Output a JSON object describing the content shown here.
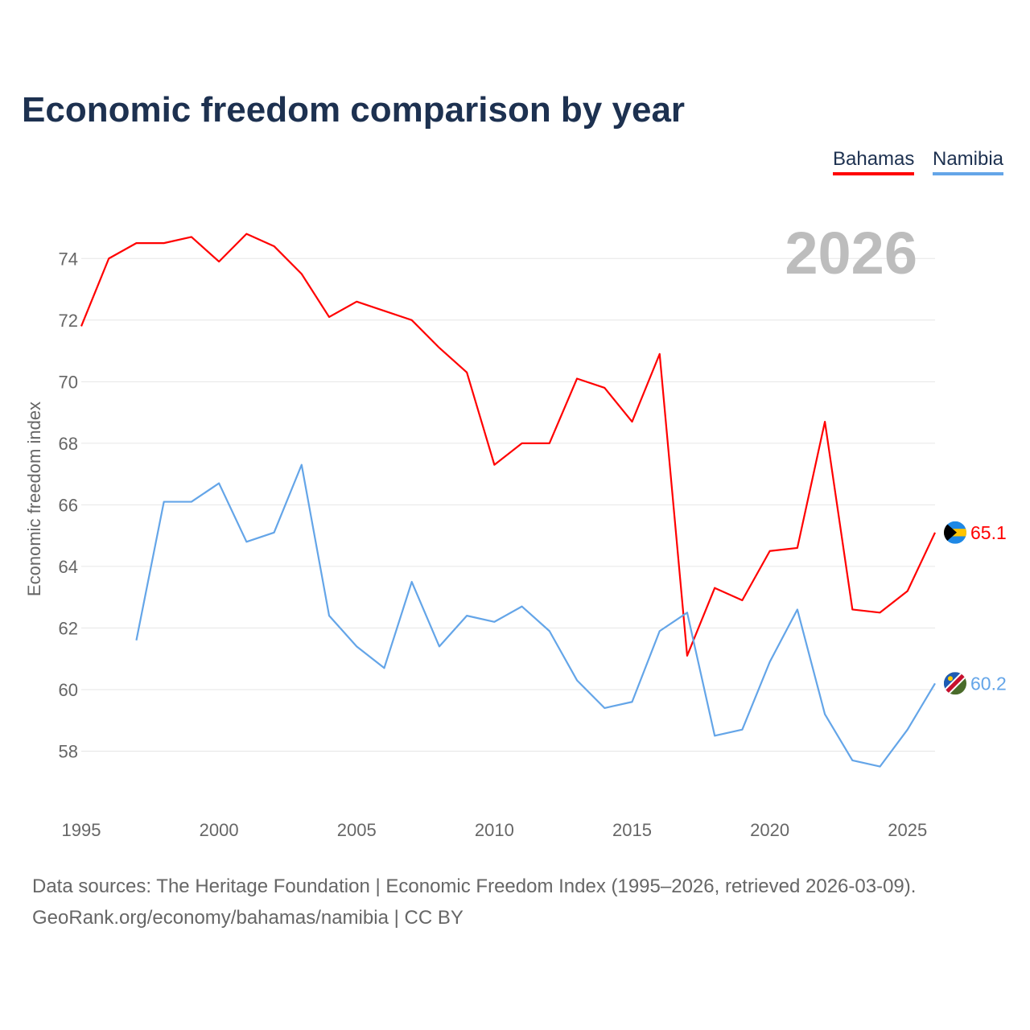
{
  "chart_data": {
    "type": "line",
    "title": "Economic freedom comparison by year",
    "xlabel": "",
    "ylabel": "Economic freedom index",
    "xlim": [
      1995,
      2026
    ],
    "ylim": [
      56,
      75
    ],
    "x_ticks": [
      1995,
      2000,
      2005,
      2010,
      2015,
      2020,
      2025
    ],
    "y_ticks": [
      58,
      60,
      62,
      64,
      66,
      68,
      70,
      72,
      74
    ],
    "grid": true,
    "legend_position": "top-right",
    "year_watermark": "2026",
    "series": [
      {
        "name": "Bahamas",
        "color": "#ff0000",
        "end_label": "65.1",
        "x": [
          1995,
          1996,
          1997,
          1998,
          1999,
          2000,
          2001,
          2002,
          2003,
          2004,
          2005,
          2006,
          2007,
          2008,
          2009,
          2010,
          2011,
          2012,
          2013,
          2014,
          2015,
          2016,
          2017,
          2018,
          2019,
          2020,
          2021,
          2022,
          2023,
          2024,
          2025,
          2026
        ],
        "values": [
          71.8,
          74.0,
          74.5,
          74.5,
          74.7,
          73.9,
          74.8,
          74.4,
          73.5,
          72.1,
          72.6,
          72.3,
          72.0,
          71.1,
          70.3,
          67.3,
          68.0,
          68.0,
          70.1,
          69.8,
          68.7,
          70.9,
          61.1,
          63.3,
          62.9,
          64.5,
          64.6,
          68.7,
          62.6,
          62.5,
          63.2,
          65.1
        ]
      },
      {
        "name": "Namibia",
        "color": "#64a5e8",
        "end_label": "60.2",
        "x": [
          1997,
          1998,
          1999,
          2000,
          2001,
          2002,
          2003,
          2004,
          2005,
          2006,
          2007,
          2008,
          2009,
          2010,
          2011,
          2012,
          2013,
          2014,
          2015,
          2016,
          2017,
          2018,
          2019,
          2020,
          2021,
          2022,
          2023,
          2024,
          2025,
          2026
        ],
        "values": [
          61.6,
          66.1,
          66.1,
          66.7,
          64.8,
          65.1,
          67.3,
          62.4,
          61.4,
          60.7,
          63.5,
          61.4,
          62.4,
          62.2,
          62.7,
          61.9,
          60.3,
          59.4,
          59.6,
          61.9,
          62.5,
          58.5,
          58.7,
          60.9,
          62.6,
          59.2,
          57.7,
          57.5,
          58.7,
          60.2
        ]
      }
    ]
  },
  "footer": {
    "line1": "Data sources: The Heritage Foundation | Economic Freedom Index (1995–2026, retrieved 2026-03-09).",
    "line2": "GeoRank.org/economy/bahamas/namibia | CC BY"
  }
}
